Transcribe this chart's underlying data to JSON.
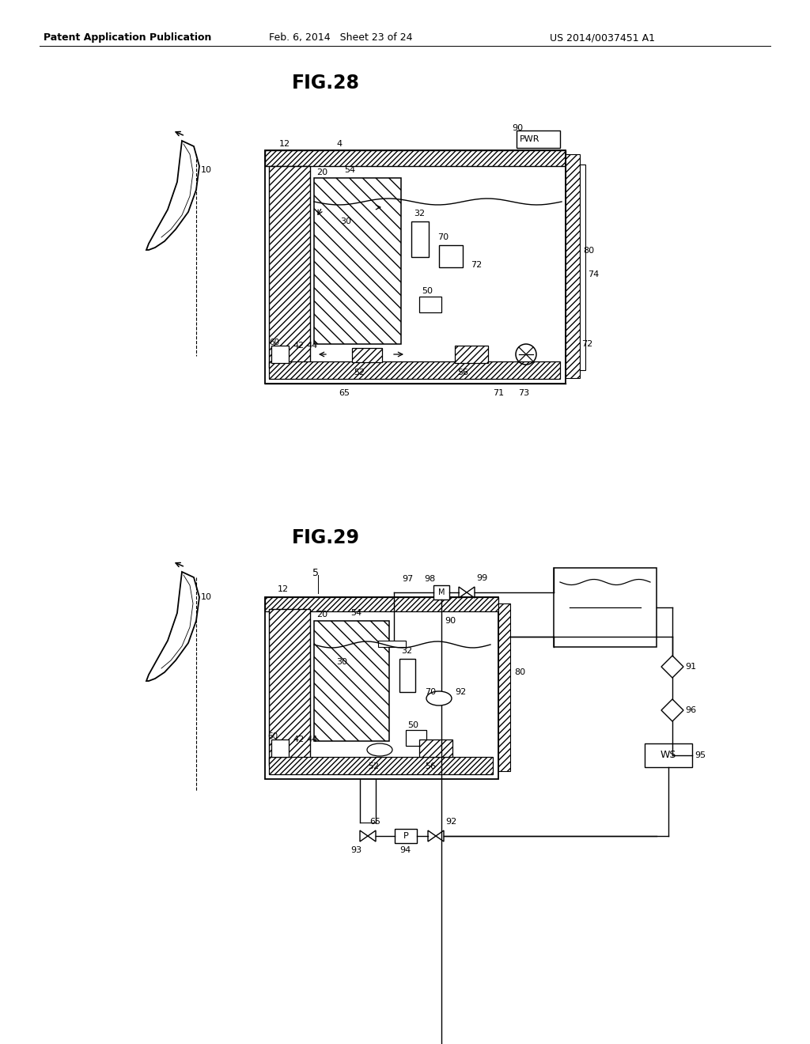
{
  "header_left": "Patent Application Publication",
  "header_center": "Feb. 6, 2014   Sheet 23 of 24",
  "header_right": "US 2014/0037451 A1",
  "fig28_label": "FIG.28",
  "fig29_label": "FIG.29",
  "bg_color": "#ffffff"
}
